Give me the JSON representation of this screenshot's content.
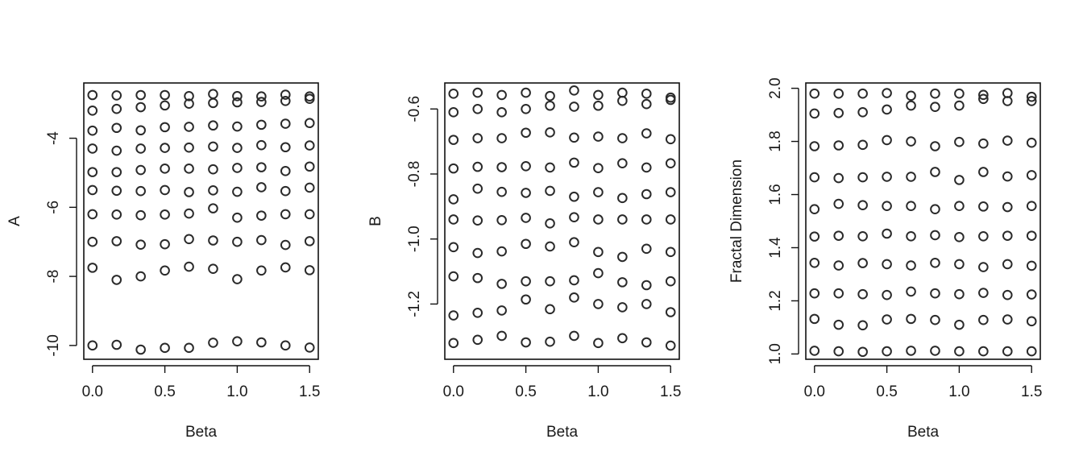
{
  "chart_data": [
    {
      "type": "scatter",
      "xlabel": "Beta",
      "ylabel": "A",
      "xlim": [
        -0.06,
        1.56
      ],
      "ylim": [
        -10.4,
        -2.4
      ],
      "xticks": [
        "0.0",
        "0.5",
        "1.0",
        "1.5"
      ],
      "yticks": [
        "-4",
        "-6",
        "-8",
        "-10"
      ],
      "x": [
        0.0,
        0.1667,
        0.3333,
        0.5,
        0.6667,
        0.8333,
        1.0,
        1.1667,
        1.3333,
        1.5
      ],
      "series": [
        {
          "values": [
            -2.75,
            -2.76,
            -2.75,
            -2.75,
            -2.78,
            -2.72,
            -2.78,
            -2.79,
            -2.74,
            -2.79
          ]
        },
        {
          "values": [
            -3.2,
            -3.15,
            -3.1,
            -3.05,
            -3.0,
            -2.98,
            -2.96,
            -2.95,
            -2.92,
            -2.86
          ]
        },
        {
          "values": [
            -3.78,
            -3.7,
            -3.77,
            -3.68,
            -3.67,
            -3.63,
            -3.66,
            -3.61,
            -3.58,
            -3.56
          ]
        },
        {
          "values": [
            -4.3,
            -4.36,
            -4.3,
            -4.28,
            -4.27,
            -4.24,
            -4.28,
            -4.2,
            -4.26,
            -4.21
          ]
        },
        {
          "values": [
            -4.98,
            -4.98,
            -4.92,
            -4.88,
            -4.88,
            -4.9,
            -4.86,
            -4.84,
            -4.95,
            -4.82
          ]
        },
        {
          "values": [
            -5.5,
            -5.52,
            -5.53,
            -5.5,
            -5.56,
            -5.51,
            -5.55,
            -5.42,
            -5.53,
            -5.43
          ]
        },
        {
          "values": [
            -6.2,
            -6.21,
            -6.23,
            -6.21,
            -6.18,
            -6.03,
            -6.3,
            -6.24,
            -6.2,
            -6.2
          ]
        },
        {
          "values": [
            -7.0,
            -6.98,
            -7.08,
            -7.07,
            -6.92,
            -6.96,
            -7.0,
            -6.95,
            -7.09,
            -6.98
          ]
        },
        {
          "values": [
            -7.75,
            -8.1,
            -8.0,
            -7.83,
            -7.72,
            -7.78,
            -8.08,
            -7.83,
            -7.74,
            -7.82
          ]
        },
        {
          "values": [
            -10.0,
            -9.98,
            -10.12,
            -10.07,
            -10.07,
            -9.92,
            -9.88,
            -9.91,
            -10.0,
            -10.06
          ]
        }
      ]
    },
    {
      "type": "scatter",
      "xlabel": "Beta",
      "ylabel": "B",
      "xlim": [
        -0.06,
        1.56
      ],
      "ylim": [
        -1.37,
        -0.52
      ],
      "xticks": [
        "0.0",
        "0.5",
        "1.0",
        "1.5"
      ],
      "yticks": [
        "-0.6",
        "-0.8",
        "-1.0",
        "-1.2"
      ],
      "x": [
        0.0,
        0.1667,
        0.3333,
        0.5,
        0.6667,
        0.8333,
        1.0,
        1.1667,
        1.3333,
        1.5
      ],
      "series": [
        {
          "values": [
            -0.553,
            -0.55,
            -0.557,
            -0.55,
            -0.56,
            -0.543,
            -0.557,
            -0.55,
            -0.553,
            -0.565
          ]
        },
        {
          "values": [
            -0.61,
            -0.6,
            -0.61,
            -0.6,
            -0.59,
            -0.593,
            -0.59,
            -0.575,
            -0.585,
            -0.572
          ]
        },
        {
          "values": [
            -0.695,
            -0.69,
            -0.69,
            -0.673,
            -0.672,
            -0.688,
            -0.685,
            -0.69,
            -0.675,
            -0.693
          ]
        },
        {
          "values": [
            -0.783,
            -0.778,
            -0.779,
            -0.776,
            -0.78,
            -0.765,
            -0.782,
            -0.767,
            -0.78,
            -0.767
          ]
        },
        {
          "values": [
            -0.878,
            -0.845,
            -0.855,
            -0.858,
            -0.852,
            -0.87,
            -0.856,
            -0.874,
            -0.862,
            -0.856
          ]
        },
        {
          "values": [
            -0.94,
            -0.943,
            -0.942,
            -0.935,
            -0.952,
            -0.933,
            -0.94,
            -0.94,
            -0.94,
            -0.94
          ]
        },
        {
          "values": [
            -1.025,
            -1.043,
            -1.038,
            -1.015,
            -1.023,
            -1.01,
            -1.04,
            -1.055,
            -1.03,
            -1.04
          ]
        },
        {
          "values": [
            -1.115,
            -1.12,
            -1.138,
            -1.13,
            -1.13,
            -1.127,
            -1.105,
            -1.133,
            -1.142,
            -1.13
          ]
        },
        {
          "values": [
            -1.235,
            -1.227,
            -1.22,
            -1.186,
            -1.216,
            -1.18,
            -1.2,
            -1.21,
            -1.2,
            -1.225
          ]
        },
        {
          "values": [
            -1.32,
            -1.31,
            -1.298,
            -1.318,
            -1.316,
            -1.298,
            -1.32,
            -1.305,
            -1.318,
            -1.328
          ]
        }
      ]
    },
    {
      "type": "scatter",
      "xlabel": "Beta",
      "ylabel": "Fractal Dimension",
      "xlim": [
        -0.06,
        1.56
      ],
      "ylim": [
        0.98,
        2.02
      ],
      "xticks": [
        "0.0",
        "0.5",
        "1.0",
        "1.5"
      ],
      "yticks": [
        "1.0",
        "1.2",
        "1.4",
        "1.6",
        "1.8",
        "2.0"
      ],
      "x": [
        0.0,
        0.1667,
        0.3333,
        0.5,
        0.6667,
        0.8333,
        1.0,
        1.1667,
        1.3333,
        1.5
      ],
      "series": [
        {
          "values": [
            1.98,
            1.98,
            1.98,
            1.982,
            1.972,
            1.98,
            1.98,
            1.975,
            1.982,
            1.968
          ]
        },
        {
          "values": [
            1.905,
            1.907,
            1.91,
            1.92,
            1.935,
            1.93,
            1.935,
            1.96,
            1.952,
            1.952
          ]
        },
        {
          "values": [
            1.782,
            1.785,
            1.787,
            1.805,
            1.8,
            1.782,
            1.798,
            1.792,
            1.803,
            1.795
          ]
        },
        {
          "values": [
            1.665,
            1.662,
            1.665,
            1.667,
            1.667,
            1.685,
            1.655,
            1.685,
            1.668,
            1.673
          ]
        },
        {
          "values": [
            1.545,
            1.565,
            1.56,
            1.557,
            1.557,
            1.545,
            1.557,
            1.555,
            1.553,
            1.557
          ]
        },
        {
          "values": [
            1.442,
            1.445,
            1.443,
            1.453,
            1.443,
            1.447,
            1.44,
            1.443,
            1.445,
            1.445
          ]
        },
        {
          "values": [
            1.343,
            1.333,
            1.342,
            1.338,
            1.333,
            1.343,
            1.338,
            1.327,
            1.338,
            1.332
          ]
        },
        {
          "values": [
            1.228,
            1.228,
            1.225,
            1.222,
            1.235,
            1.228,
            1.225,
            1.23,
            1.222,
            1.224
          ]
        },
        {
          "values": [
            1.132,
            1.11,
            1.108,
            1.13,
            1.132,
            1.128,
            1.11,
            1.128,
            1.13,
            1.123
          ]
        },
        {
          "values": [
            1.012,
            1.01,
            1.008,
            1.01,
            1.012,
            1.012,
            1.01,
            1.01,
            1.01,
            1.01
          ]
        }
      ]
    }
  ]
}
